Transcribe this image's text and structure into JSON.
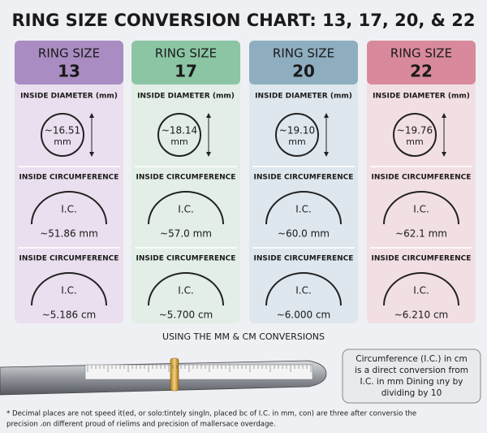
{
  "title": "RING SIZE CONVERSION CHART: 13, 17, 20, & 22",
  "header_label": "RING SIZE",
  "section_labels": [
    "INSIDE DIAMETER (mm)",
    "INSIDE CIRCUMFERENCE",
    "INSIDE CIRCUMFERENCE"
  ],
  "ic_label": "I.C.",
  "diameter_unit": "mm",
  "columns": [
    {
      "size": "13",
      "diameter": "~16.51",
      "circumference_mm": "~51.86 mm",
      "circumference_cm": "~5.186 cm",
      "header_color": "#a98cc2",
      "body_color": "#eadfee"
    },
    {
      "size": "17",
      "diameter": "~18.14",
      "circumference_mm": "~57.0 mm",
      "circumference_cm": "~5.700 cm",
      "header_color": "#8cc5a4",
      "body_color": "#e2eee6"
    },
    {
      "size": "20",
      "diameter": "~19.10",
      "circumference_mm": "~60.0 mm",
      "circumference_cm": "~6.000 cm",
      "header_color": "#8eaec0",
      "body_color": "#dee7ee"
    },
    {
      "size": "22",
      "diameter": "~19.76",
      "circumference_mm": "~62.1 mm",
      "circumference_cm": "~6.210 cm",
      "header_color": "#d88a9c",
      "body_color": "#f2dfe4"
    }
  ],
  "subtitle": "USING THE MM & CM CONVERSIONS",
  "callout": [
    "Circumference (I.C.) in cm",
    "is a direct conversion from",
    "I.C. in mm Dining ɩny by",
    "dividing by 10"
  ],
  "footnote": [
    "* Decimal places are not speed it(ed, or solo:tintely singln, placed bc of I.C. in mm, con) are three after conversio the",
    "precision ،on different proud of rielims and precision of mallersace overdage."
  ]
}
